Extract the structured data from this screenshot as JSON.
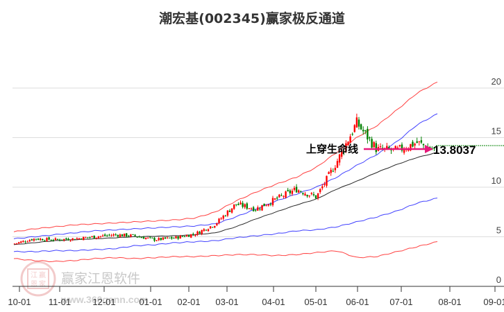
{
  "title": "潮宏基(002345)赢家极反通道",
  "watermark": {
    "brand": "赢家江恩软件",
    "url": "www.360gann.com",
    "seal_chars": [
      "江",
      "赢",
      "恩",
      "家"
    ]
  },
  "annotation": {
    "label": "上穿生命线",
    "value": "13.8037",
    "arrow_color": "#e6197a",
    "level_line_color": "#008000"
  },
  "colors": {
    "up_candle": "#ff0000",
    "down_candle": "#008000",
    "outer_band": "#ff0000",
    "inner_band": "#0000ff",
    "life_line": "#000000",
    "grid": "#dddddd"
  },
  "chart_data": {
    "type": "candlestick-with-bands",
    "title": "潮宏基(002345)赢家极反通道",
    "xlabel": "",
    "ylabel": "",
    "ylim": [
      0,
      21
    ],
    "y_ticks": [
      0,
      5,
      10,
      15,
      20
    ],
    "x_ticks": [
      "10-01",
      "11-01",
      "12-01",
      "01-01",
      "02-01",
      "03-01",
      "04-01",
      "05-01",
      "06-01",
      "07-01",
      "08-01",
      "09-01"
    ],
    "grid": "horizontal",
    "legend": "none",
    "annotations": [
      {
        "text": "上穿生命线",
        "type": "arrow",
        "target_value": 13.8037
      },
      {
        "text": "13.8037",
        "type": "level-label"
      }
    ],
    "x": [
      "10-01",
      "10-15",
      "11-01",
      "11-15",
      "12-01",
      "12-15",
      "01-01",
      "01-15",
      "02-01",
      "02-15",
      "03-01",
      "03-15",
      "04-01",
      "04-15",
      "05-01",
      "05-15",
      "06-01",
      "06-08",
      "06-15",
      "07-01",
      "07-15",
      "07-25"
    ],
    "series": [
      {
        "name": "upper-outer (red)",
        "values": [
          5.5,
          5.8,
          6.0,
          6.2,
          6.3,
          6.4,
          6.5,
          6.6,
          6.7,
          6.9,
          7.5,
          8.6,
          9.5,
          10.3,
          11.0,
          12.0,
          13.5,
          15.0,
          16.2,
          17.8,
          19.5,
          20.6
        ]
      },
      {
        "name": "upper-inner (blue)",
        "values": [
          4.8,
          5.0,
          5.2,
          5.4,
          5.6,
          5.7,
          5.8,
          5.9,
          6.0,
          6.1,
          6.3,
          7.0,
          7.8,
          8.6,
          9.3,
          10.0,
          11.0,
          12.2,
          13.3,
          14.6,
          16.3,
          17.4
        ]
      },
      {
        "name": "life-line (black)",
        "values": [
          4.2,
          4.4,
          4.6,
          4.7,
          4.8,
          4.9,
          5.0,
          5.05,
          5.1,
          5.2,
          5.4,
          6.0,
          6.8,
          7.5,
          8.2,
          8.8,
          9.8,
          10.6,
          11.5,
          12.3,
          13.0,
          13.5
        ]
      },
      {
        "name": "lower-inner (blue)",
        "values": [
          3.5,
          3.5,
          3.6,
          3.6,
          3.7,
          3.8,
          4.1,
          4.2,
          4.4,
          4.5,
          4.6,
          4.9,
          5.1,
          5.3,
          5.6,
          5.7,
          6.0,
          6.5,
          7.0,
          7.6,
          8.4,
          8.9
        ]
      },
      {
        "name": "lower-outer (red)",
        "values": [
          2.8,
          2.6,
          2.5,
          2.6,
          2.8,
          2.9,
          2.8,
          2.9,
          3.0,
          3.0,
          3.1,
          3.2,
          3.2,
          3.1,
          3.2,
          3.4,
          3.6,
          2.9,
          3.0,
          3.5,
          4.0,
          4.5
        ]
      },
      {
        "name": "close (candles)",
        "values": [
          4.3,
          4.8,
          4.7,
          4.8,
          5.0,
          5.2,
          5.1,
          4.7,
          4.9,
          5.3,
          6.3,
          8.3,
          7.8,
          8.8,
          9.8,
          9.0,
          12.5,
          16.5,
          13.8,
          13.7,
          14.5,
          13.6
        ]
      }
    ]
  }
}
